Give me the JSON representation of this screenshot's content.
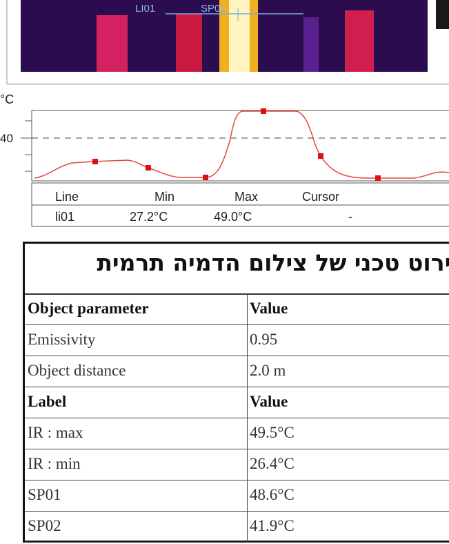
{
  "image": {
    "labels": [
      "LI01",
      "SP01"
    ]
  },
  "profile": {
    "unit": "°C",
    "tick": "40"
  },
  "info_table": {
    "header": [
      "Line",
      "Min",
      "Max",
      "Cursor"
    ],
    "rows": [
      [
        "li01",
        "27.2°C",
        "49.0°C",
        "-"
      ]
    ]
  },
  "report": {
    "title": "פירוט טכני של צילום הדמיה תרמית",
    "rows": [
      [
        "Object parameter",
        "Value"
      ],
      [
        "Emissivity",
        "0.95"
      ],
      [
        "Object distance",
        "2.0 m"
      ],
      [
        "Label",
        "Value"
      ],
      [
        "IR : max",
        "49.5°C"
      ],
      [
        "IR : min",
        "26.4°C"
      ],
      [
        "SP01",
        "48.6°C"
      ],
      [
        "SP02",
        "41.9°C"
      ]
    ]
  }
}
